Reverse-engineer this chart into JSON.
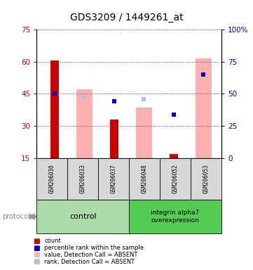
{
  "title": "GDS3209 / 1449261_at",
  "samples": [
    "GSM206030",
    "GSM206033",
    "GSM206037",
    "GSM206048",
    "GSM206052",
    "GSM206053"
  ],
  "left_ylim": [
    15,
    75
  ],
  "right_ylim": [
    0,
    100
  ],
  "left_yticks": [
    15,
    30,
    45,
    60,
    75
  ],
  "right_yticks": [
    0,
    25,
    50,
    75,
    100
  ],
  "right_yticklabels": [
    "0",
    "25",
    "50",
    "75",
    "100%"
  ],
  "red_bars": {
    "GSM206030": 60.5,
    "GSM206037": 33.0,
    "GSM206052": 17.0
  },
  "pink_bars": {
    "GSM206033": 47.0,
    "GSM206048": 38.5,
    "GSM206053": 61.5
  },
  "blue_squares": {
    "GSM206030": 50.0,
    "GSM206037": 44.0,
    "GSM206052": 34.0,
    "GSM206053": 65.0
  },
  "light_blue_squares": {
    "GSM206033": 47.5,
    "GSM206048": 46.0,
    "GSM206053": 65.0
  },
  "red_color": "#CC0000",
  "pink_color": "#FFB0B0",
  "blue_color": "#0000BB",
  "light_blue_color": "#BBBBDD",
  "title_fontsize": 10,
  "tick_fontsize": 7.5,
  "left_tick_color": "#CC0000",
  "right_tick_color": "#0000BB",
  "control_color": "#AADDAA",
  "integrin_color": "#55CC55"
}
